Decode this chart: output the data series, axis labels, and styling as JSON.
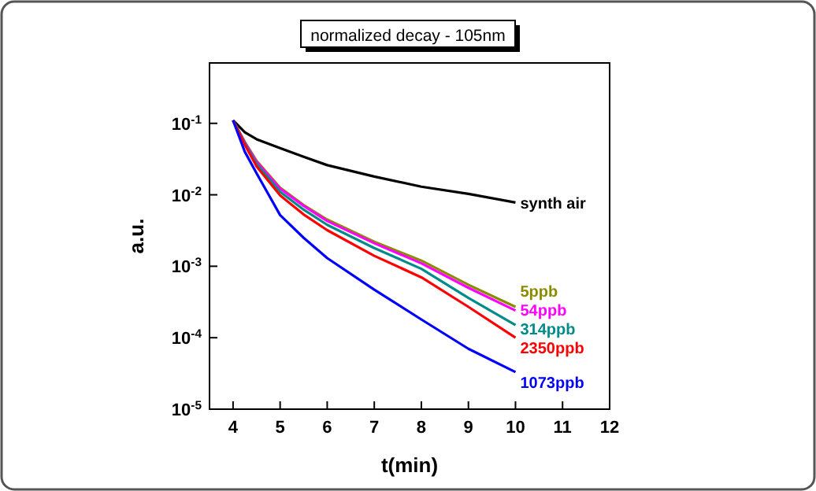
{
  "chart_data": {
    "type": "line",
    "title": "normalized decay - 105nm",
    "xlabel": "t(min)",
    "ylabel": "a.u.",
    "log": "y",
    "grid": false,
    "legend": false,
    "marker": "none",
    "line_style": "solid",
    "x": [
      4,
      4.25,
      4.5,
      5,
      5.5,
      6,
      7,
      8,
      9,
      10
    ],
    "xlim": [
      3.5,
      12
    ],
    "xticks": [
      4,
      5,
      6,
      7,
      8,
      9,
      10,
      11,
      12
    ],
    "ylim": [
      1e-05,
      0.7
    ],
    "yticks": [
      {
        "value": 0.1,
        "label": "10$^{-1}$"
      },
      {
        "value": 0.01,
        "label": "10$^{-2}$"
      },
      {
        "value": 0.001,
        "label": "10$^{-3}$"
      },
      {
        "value": 0.0001,
        "label": "10$^{-4}$"
      },
      {
        "value": 1e-05,
        "label": "10$^{-5}$"
      }
    ],
    "series": [
      {
        "name": "synth air",
        "color": "#000000",
        "values": [
          0.11,
          0.075,
          0.06,
          0.045,
          0.034,
          0.026,
          0.018,
          0.013,
          0.0103,
          0.0078
        ]
      },
      {
        "name": "5ppb",
        "color": "#8b8b00",
        "values": [
          0.11,
          0.055,
          0.03,
          0.0126,
          0.0072,
          0.0045,
          0.0022,
          0.0012,
          0.00055,
          0.00027
        ]
      },
      {
        "name": "54ppb",
        "color": "#ff00ff",
        "values": [
          0.11,
          0.054,
          0.029,
          0.0122,
          0.007,
          0.0043,
          0.0021,
          0.0011,
          0.0005,
          0.00024
        ]
      },
      {
        "name": "314ppb",
        "color": "#008b8b",
        "values": [
          0.11,
          0.052,
          0.027,
          0.011,
          0.0062,
          0.0038,
          0.0018,
          0.00092,
          0.00036,
          0.00015
        ]
      },
      {
        "name": "2350ppb",
        "color": "#ff0000",
        "values": [
          0.11,
          0.05,
          0.025,
          0.0098,
          0.0053,
          0.0032,
          0.0014,
          0.0007,
          0.00027,
          0.0001
        ]
      },
      {
        "name": "1073ppb",
        "color": "#0000ff",
        "values": [
          0.11,
          0.04,
          0.02,
          0.0052,
          0.0025,
          0.0013,
          0.00047,
          0.00018,
          7e-05,
          3.3e-05
        ]
      }
    ]
  }
}
